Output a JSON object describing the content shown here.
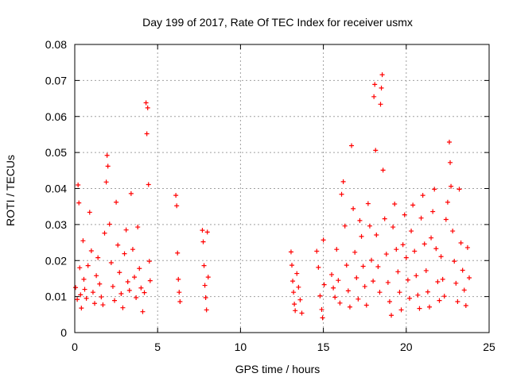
{
  "chart_data": {
    "type": "scatter",
    "title": "Day 199 of 2017, Rate Of TEC Index for receiver usmx",
    "xlabel": "GPS time / hours",
    "ylabel": "ROTI / TECUs",
    "xlim": [
      0,
      25
    ],
    "ylim": [
      0,
      0.08
    ],
    "xticks": [
      0,
      5,
      10,
      15,
      20,
      25
    ],
    "xtick_labels": [
      "0",
      "5",
      "10",
      "15",
      "20",
      "25"
    ],
    "yticks": [
      0,
      0.01,
      0.02,
      0.03,
      0.04,
      0.05,
      0.06,
      0.07,
      0.08
    ],
    "ytick_labels": [
      "0",
      "0.01",
      "0.02",
      "0.03",
      "0.04",
      "0.05",
      "0.06",
      "0.07",
      "0.08"
    ],
    "grid": true,
    "marker": "+",
    "color": "#ff0000",
    "series": [
      {
        "points": [
          [
            0.05,
            0.0125
          ],
          [
            0.15,
            0.0092
          ],
          [
            0.2,
            0.041
          ],
          [
            0.25,
            0.036
          ],
          [
            0.3,
            0.018
          ],
          [
            0.35,
            0.0105
          ],
          [
            0.4,
            0.0068
          ],
          [
            0.5,
            0.0255
          ],
          [
            0.55,
            0.0148
          ],
          [
            0.6,
            0.012
          ],
          [
            0.7,
            0.0095
          ],
          [
            0.8,
            0.0186
          ],
          [
            0.9,
            0.0334
          ],
          [
            1.0,
            0.0227
          ],
          [
            1.1,
            0.0112
          ],
          [
            1.2,
            0.0081
          ],
          [
            1.3,
            0.0158
          ],
          [
            1.4,
            0.0208
          ],
          [
            1.5,
            0.0135
          ],
          [
            1.6,
            0.0099
          ],
          [
            1.7,
            0.0077
          ],
          [
            1.8,
            0.0276
          ],
          [
            1.9,
            0.0418
          ],
          [
            1.95,
            0.0492
          ],
          [
            2.0,
            0.0462
          ],
          [
            2.1,
            0.0301
          ],
          [
            2.2,
            0.0194
          ],
          [
            2.3,
            0.0128
          ],
          [
            2.4,
            0.0089
          ],
          [
            2.5,
            0.0362
          ],
          [
            2.6,
            0.0243
          ],
          [
            2.7,
            0.0167
          ],
          [
            2.8,
            0.0108
          ],
          [
            2.9,
            0.0069
          ],
          [
            3.0,
            0.0219
          ],
          [
            3.1,
            0.0285
          ],
          [
            3.2,
            0.0141
          ],
          [
            3.3,
            0.0117
          ],
          [
            3.4,
            0.0386
          ],
          [
            3.5,
            0.0231
          ],
          [
            3.6,
            0.0154
          ],
          [
            3.7,
            0.0097
          ],
          [
            3.8,
            0.0293
          ],
          [
            3.9,
            0.0178
          ],
          [
            4.0,
            0.0124
          ],
          [
            4.1,
            0.0058
          ],
          [
            4.2,
            0.0111
          ],
          [
            4.3,
            0.0638
          ],
          [
            4.35,
            0.0552
          ],
          [
            4.4,
            0.0624
          ],
          [
            4.45,
            0.0411
          ],
          [
            4.5,
            0.0198
          ],
          [
            4.55,
            0.0144
          ],
          [
            6.1,
            0.0381
          ],
          [
            6.15,
            0.0352
          ],
          [
            6.2,
            0.0221
          ],
          [
            6.25,
            0.0148
          ],
          [
            6.3,
            0.0112
          ],
          [
            6.35,
            0.0086
          ],
          [
            7.7,
            0.0284
          ],
          [
            7.75,
            0.0252
          ],
          [
            7.8,
            0.0186
          ],
          [
            7.85,
            0.0131
          ],
          [
            7.9,
            0.0097
          ],
          [
            7.95,
            0.0063
          ],
          [
            8.0,
            0.0279
          ],
          [
            8.05,
            0.0154
          ],
          [
            13.05,
            0.0224
          ],
          [
            13.1,
            0.0187
          ],
          [
            13.15,
            0.0143
          ],
          [
            13.2,
            0.0112
          ],
          [
            13.25,
            0.0079
          ],
          [
            13.3,
            0.0061
          ],
          [
            13.4,
            0.0164
          ],
          [
            13.5,
            0.0126
          ],
          [
            13.6,
            0.0091
          ],
          [
            13.7,
            0.0054
          ],
          [
            14.6,
            0.0226
          ],
          [
            14.7,
            0.0181
          ],
          [
            14.8,
            0.0102
          ],
          [
            14.9,
            0.0064
          ],
          [
            14.95,
            0.0041
          ],
          [
            15.0,
            0.0257
          ],
          [
            15.05,
            0.0133
          ],
          [
            15.5,
            0.0161
          ],
          [
            15.6,
            0.0124
          ],
          [
            15.7,
            0.0098
          ],
          [
            15.8,
            0.0231
          ],
          [
            15.9,
            0.0145
          ],
          [
            16.0,
            0.0082
          ],
          [
            16.1,
            0.0384
          ],
          [
            16.2,
            0.0419
          ],
          [
            16.3,
            0.0296
          ],
          [
            16.4,
            0.0187
          ],
          [
            16.5,
            0.0116
          ],
          [
            16.6,
            0.0071
          ],
          [
            16.7,
            0.0519
          ],
          [
            16.8,
            0.0344
          ],
          [
            16.9,
            0.0223
          ],
          [
            17.0,
            0.0152
          ],
          [
            17.1,
            0.0093
          ],
          [
            17.2,
            0.0311
          ],
          [
            17.3,
            0.0267
          ],
          [
            17.4,
            0.0184
          ],
          [
            17.5,
            0.0128
          ],
          [
            17.6,
            0.0076
          ],
          [
            17.7,
            0.0358
          ],
          [
            17.8,
            0.0296
          ],
          [
            17.9,
            0.0201
          ],
          [
            18.0,
            0.0143
          ],
          [
            18.05,
            0.0655
          ],
          [
            18.1,
            0.0689
          ],
          [
            18.15,
            0.0506
          ],
          [
            18.2,
            0.0271
          ],
          [
            18.3,
            0.0183
          ],
          [
            18.4,
            0.0112
          ],
          [
            18.45,
            0.0634
          ],
          [
            18.5,
            0.0679
          ],
          [
            18.55,
            0.0716
          ],
          [
            18.6,
            0.0451
          ],
          [
            18.7,
            0.0316
          ],
          [
            18.8,
            0.0218
          ],
          [
            18.9,
            0.0139
          ],
          [
            19.0,
            0.0086
          ],
          [
            19.1,
            0.0048
          ],
          [
            19.2,
            0.0293
          ],
          [
            19.3,
            0.0357
          ],
          [
            19.4,
            0.0231
          ],
          [
            19.5,
            0.0169
          ],
          [
            19.6,
            0.0112
          ],
          [
            19.7,
            0.0063
          ],
          [
            19.8,
            0.0244
          ],
          [
            19.9,
            0.0327
          ],
          [
            20.0,
            0.0208
          ],
          [
            20.1,
            0.0146
          ],
          [
            20.2,
            0.0095
          ],
          [
            20.3,
            0.0282
          ],
          [
            20.4,
            0.0354
          ],
          [
            20.5,
            0.0226
          ],
          [
            20.6,
            0.0158
          ],
          [
            20.7,
            0.0104
          ],
          [
            20.8,
            0.0067
          ],
          [
            20.9,
            0.0318
          ],
          [
            21.0,
            0.0381
          ],
          [
            21.1,
            0.0246
          ],
          [
            21.2,
            0.0172
          ],
          [
            21.3,
            0.0113
          ],
          [
            21.4,
            0.0071
          ],
          [
            21.5,
            0.0263
          ],
          [
            21.6,
            0.0336
          ],
          [
            21.7,
            0.0398
          ],
          [
            21.8,
            0.0233
          ],
          [
            21.9,
            0.0141
          ],
          [
            22.0,
            0.0089
          ],
          [
            22.1,
            0.0211
          ],
          [
            22.2,
            0.0148
          ],
          [
            22.3,
            0.0101
          ],
          [
            22.4,
            0.0314
          ],
          [
            22.5,
            0.0362
          ],
          [
            22.6,
            0.0529
          ],
          [
            22.65,
            0.0472
          ],
          [
            22.7,
            0.0406
          ],
          [
            22.8,
            0.0282
          ],
          [
            22.9,
            0.0198
          ],
          [
            23.0,
            0.0137
          ],
          [
            23.1,
            0.0086
          ],
          [
            23.2,
            0.0398
          ],
          [
            23.3,
            0.0249
          ],
          [
            23.4,
            0.0173
          ],
          [
            23.5,
            0.0118
          ],
          [
            23.6,
            0.0075
          ],
          [
            23.7,
            0.0236
          ],
          [
            23.8,
            0.0152
          ]
        ]
      }
    ]
  }
}
